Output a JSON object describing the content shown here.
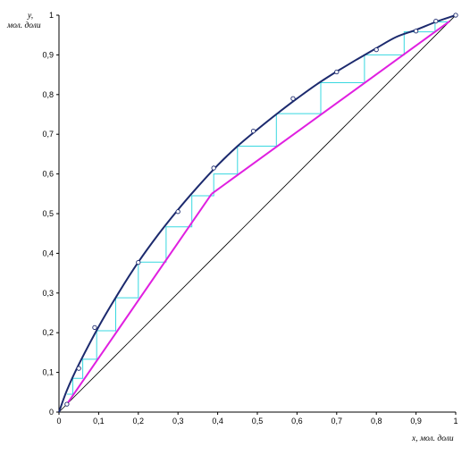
{
  "chart_data": {
    "type": "line",
    "xlabel": "x, мол. доли",
    "ylabel_line1": "y,",
    "ylabel_line2": "мол. доли",
    "xlim": [
      0,
      1
    ],
    "ylim": [
      0,
      1
    ],
    "grid": false,
    "x_ticks": [
      "0",
      "0,1",
      "0,2",
      "0,3",
      "0,4",
      "0,5",
      "0,6",
      "0,7",
      "0,8",
      "0,9",
      "1"
    ],
    "y_ticks": [
      "0",
      "0,1",
      "0,2",
      "0,3",
      "0,4",
      "0,5",
      "0,6",
      "0,7",
      "0,8",
      "0,9",
      "1"
    ],
    "colors": {
      "equilibrium": "#1c2a6e",
      "operating": "#e020e0",
      "steps": "#38d8e0",
      "diagonal": "#000000",
      "points": "#1c2a6e"
    },
    "series": [
      {
        "role": "equilibrium",
        "x": [
          0,
          0.02,
          0.05,
          0.1,
          0.15,
          0.2,
          0.25,
          0.3,
          0.35,
          0.4,
          0.45,
          0.5,
          0.55,
          0.6,
          0.65,
          0.7,
          0.75,
          0.8,
          0.85,
          0.9,
          0.95,
          1.0
        ],
        "y": [
          0,
          0.055,
          0.12,
          0.215,
          0.3,
          0.378,
          0.447,
          0.51,
          0.568,
          0.622,
          0.67,
          0.712,
          0.752,
          0.79,
          0.826,
          0.858,
          0.888,
          0.917,
          0.945,
          0.963,
          0.983,
          1.0
        ]
      },
      {
        "role": "experimental_points",
        "x": [
          0.02,
          0.05,
          0.09,
          0.2,
          0.3,
          0.39,
          0.49,
          0.59,
          0.7,
          0.8,
          0.9,
          0.95,
          1.0
        ],
        "y": [
          0.02,
          0.11,
          0.213,
          0.377,
          0.505,
          0.615,
          0.708,
          0.79,
          0.857,
          0.913,
          0.96,
          0.985,
          1.0
        ]
      },
      {
        "role": "operating_line_lower",
        "x": [
          0.02,
          0.385
        ],
        "y": [
          0.02,
          0.55
        ]
      },
      {
        "role": "operating_line_upper",
        "x": [
          0.385,
          0.985
        ],
        "y": [
          0.55,
          0.985
        ]
      },
      {
        "role": "diagonal",
        "x": [
          0,
          1
        ],
        "y": [
          0,
          1
        ]
      },
      {
        "role": "stepping",
        "x": [
          0.983,
          0.948,
          0.948,
          0.87,
          0.87,
          0.77,
          0.77,
          0.66,
          0.66,
          0.548,
          0.548,
          0.45,
          0.45,
          0.39,
          0.39,
          0.335,
          0.335,
          0.27,
          0.27,
          0.2,
          0.2,
          0.143,
          0.143,
          0.095,
          0.095,
          0.06,
          0.06,
          0.035,
          0.035,
          0.02
        ],
        "y": [
          0.983,
          0.983,
          0.958,
          0.958,
          0.9,
          0.9,
          0.83,
          0.83,
          0.752,
          0.752,
          0.67,
          0.67,
          0.6,
          0.6,
          0.545,
          0.545,
          0.467,
          0.467,
          0.378,
          0.378,
          0.288,
          0.288,
          0.205,
          0.205,
          0.133,
          0.133,
          0.085,
          0.085,
          0.045,
          0.045
        ]
      }
    ]
  }
}
